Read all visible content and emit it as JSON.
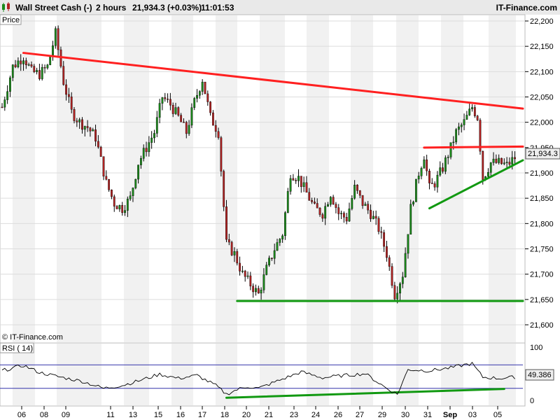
{
  "header": {
    "instrument": "Wall Street Cash (-)",
    "timeframe": "2 hours",
    "price": "21,934.3 (+0.03%)",
    "time": "11:01:53",
    "brand": "IT-Finance.com"
  },
  "price_panel": {
    "label": "Price"
  },
  "rsi_panel": {
    "label": "RSI ( 14)",
    "top_label": "100",
    "bottom_label": "0"
  },
  "watermark": "© IT-Finance.com",
  "colors": {
    "up": "#1a8a1a",
    "down": "#b22222",
    "resistance": "#ff2020",
    "support": "#119911",
    "rsi_line": "#000000",
    "rsi_band": "#3333aa"
  },
  "chart_data": {
    "type": "candlestick",
    "title": "Wall Street Cash (-) 2 hours",
    "last_price": "21,934.3",
    "rsi_last": "49.386",
    "y_axis": {
      "ylim": [
        21580,
        22210
      ],
      "ticks": [
        "22,200",
        "22,150",
        "22,100",
        "22,050",
        "22,000",
        "21,950",
        "21,900",
        "21,850",
        "21,800",
        "21,750",
        "21,700",
        "21,650",
        "21,600"
      ]
    },
    "x_axis": {
      "ticks": [
        "06",
        "08",
        "09",
        "11",
        "13",
        "15",
        "16",
        "17",
        "18",
        "20",
        "21",
        "23",
        "24",
        "26",
        "27",
        "29",
        "30",
        "31",
        "Sep",
        "03",
        "05"
      ]
    },
    "price_path": [
      [
        0,
        22030
      ],
      [
        4,
        22110
      ],
      [
        8,
        22130
      ],
      [
        11,
        22100
      ],
      [
        14,
        22095
      ],
      [
        17,
        22110
      ],
      [
        20,
        22175
      ],
      [
        23,
        22080
      ],
      [
        26,
        22020
      ],
      [
        29,
        22000
      ],
      [
        32,
        21990
      ],
      [
        35,
        21970
      ],
      [
        39,
        21880
      ],
      [
        42,
        21840
      ],
      [
        45,
        21830
      ],
      [
        48,
        21850
      ],
      [
        51,
        21920
      ],
      [
        54,
        21950
      ],
      [
        57,
        21980
      ],
      [
        60,
        22050
      ],
      [
        63,
        22035
      ],
      [
        66,
        22010
      ],
      [
        69,
        21980
      ],
      [
        72,
        22040
      ],
      [
        75,
        22085
      ],
      [
        78,
        22010
      ],
      [
        81,
        21980
      ],
      [
        84,
        21760
      ],
      [
        87,
        21740
      ],
      [
        90,
        21700
      ],
      [
        93,
        21680
      ],
      [
        96,
        21660
      ],
      [
        99,
        21710
      ],
      [
        102,
        21750
      ],
      [
        105,
        21780
      ],
      [
        108,
        21900
      ],
      [
        111,
        21890
      ],
      [
        114,
        21860
      ],
      [
        117,
        21830
      ],
      [
        120,
        21820
      ],
      [
        123,
        21860
      ],
      [
        126,
        21820
      ],
      [
        129,
        21810
      ],
      [
        132,
        21870
      ],
      [
        135,
        21840
      ],
      [
        138,
        21820
      ],
      [
        141,
        21790
      ],
      [
        144,
        21740
      ],
      [
        147,
        21660
      ],
      [
        150,
        21700
      ],
      [
        153,
        21830
      ],
      [
        156,
        21900
      ],
      [
        158,
        21935
      ],
      [
        160,
        21870
      ],
      [
        162,
        21880
      ],
      [
        165,
        21910
      ],
      [
        168,
        21950
      ],
      [
        170,
        21980
      ],
      [
        173,
        22000
      ],
      [
        176,
        22030
      ],
      [
        178,
        22010
      ],
      [
        180,
        21890
      ],
      [
        183,
        21920
      ],
      [
        186,
        21920
      ],
      [
        189,
        21915
      ],
      [
        192,
        21930
      ]
    ],
    "rsi_path": [
      [
        0,
        60
      ],
      [
        8,
        69
      ],
      [
        14,
        57
      ],
      [
        22,
        49
      ],
      [
        30,
        42
      ],
      [
        38,
        30
      ],
      [
        45,
        35
      ],
      [
        52,
        44
      ],
      [
        59,
        54
      ],
      [
        66,
        47
      ],
      [
        73,
        52
      ],
      [
        80,
        35
      ],
      [
        84,
        20
      ],
      [
        88,
        28
      ],
      [
        92,
        33
      ],
      [
        96,
        30
      ],
      [
        104,
        44
      ],
      [
        112,
        58
      ],
      [
        120,
        48
      ],
      [
        128,
        52
      ],
      [
        136,
        55
      ],
      [
        144,
        30
      ],
      [
        148,
        20
      ],
      [
        152,
        62
      ],
      [
        160,
        60
      ],
      [
        168,
        65
      ],
      [
        173,
        70
      ],
      [
        176,
        72
      ],
      [
        180,
        49
      ],
      [
        186,
        47
      ],
      [
        192,
        49
      ]
    ],
    "trendlines": [
      {
        "name": "resistance-long",
        "color": "red",
        "from": [
          8,
          22137
        ],
        "to": [
          195,
          22027
        ]
      },
      {
        "name": "resistance-short",
        "color": "red",
        "from": [
          158,
          21950
        ],
        "to": [
          195,
          21952
        ]
      },
      {
        "name": "support-low",
        "color": "green",
        "from": [
          88,
          21647
        ],
        "to": [
          195,
          21647
        ]
      },
      {
        "name": "support-rising",
        "color": "green",
        "from": [
          160,
          21830
        ],
        "to": [
          195,
          21925
        ]
      },
      {
        "name": "rsi-rising",
        "color": "green",
        "from": [
          84,
          14
        ],
        "to": [
          188,
          29
        ]
      }
    ],
    "rsi_ylim": [
      0,
      100
    ],
    "rsi_bands": [
      70,
      30
    ]
  }
}
